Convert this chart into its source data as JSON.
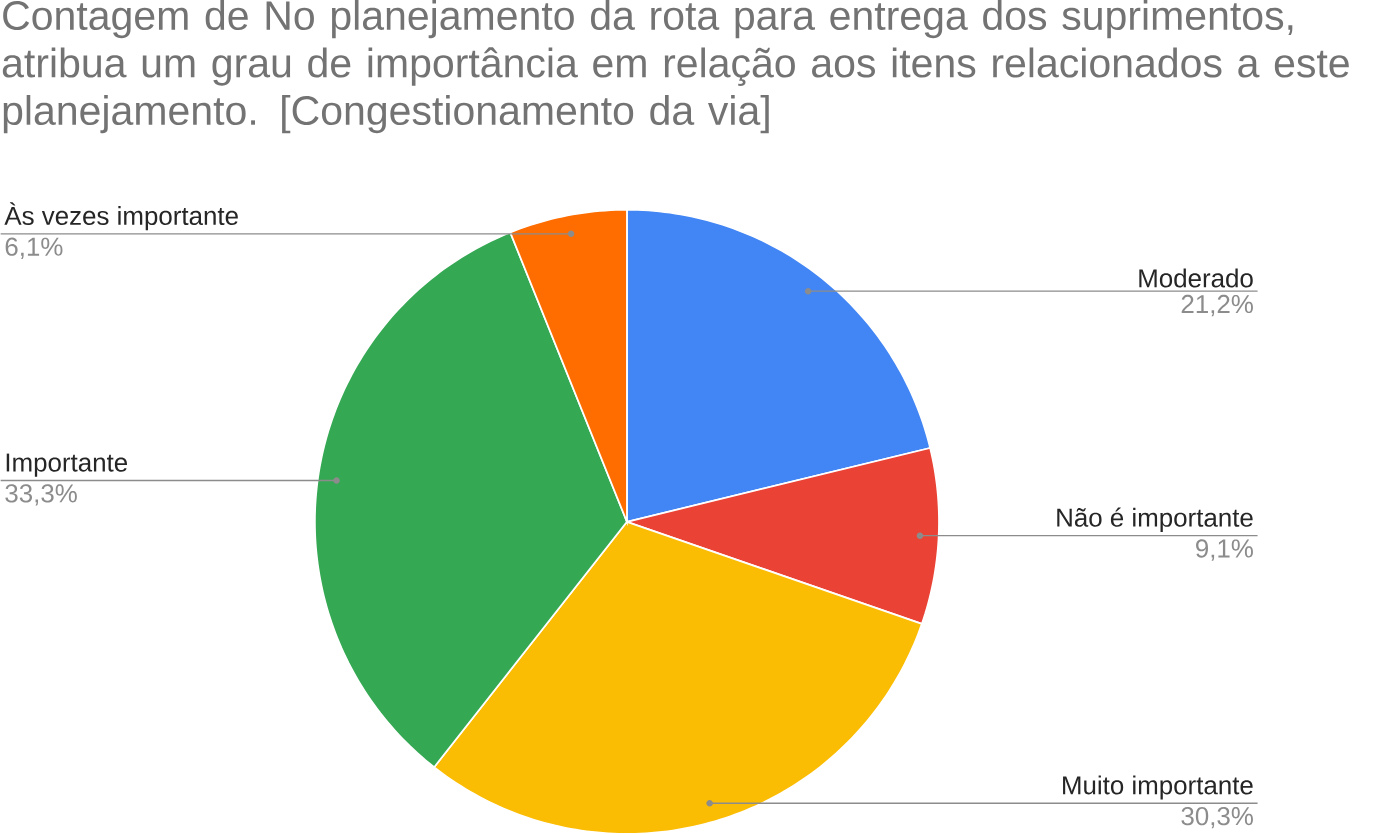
{
  "chart_data": {
    "type": "pie",
    "title": "Contagem de No planejamento da rota para entrega dos suprimentos, atribua um grau de importância em relação aos itens relacionados a este planejamento. [Congestionamento da via]",
    "categories": [
      "Moderado",
      "Não é importante",
      "Muito importante",
      "Importante",
      "Às vezes importante"
    ],
    "values": [
      21.2,
      9.1,
      30.3,
      33.3,
      6.1
    ],
    "value_labels": [
      "21,2%",
      "9,1%",
      "30,3%",
      "33,3%",
      "6,1%"
    ],
    "colors": [
      "#4285f4",
      "#ea4335",
      "#fbbc04",
      "#34a853",
      "#ff6d01"
    ]
  }
}
